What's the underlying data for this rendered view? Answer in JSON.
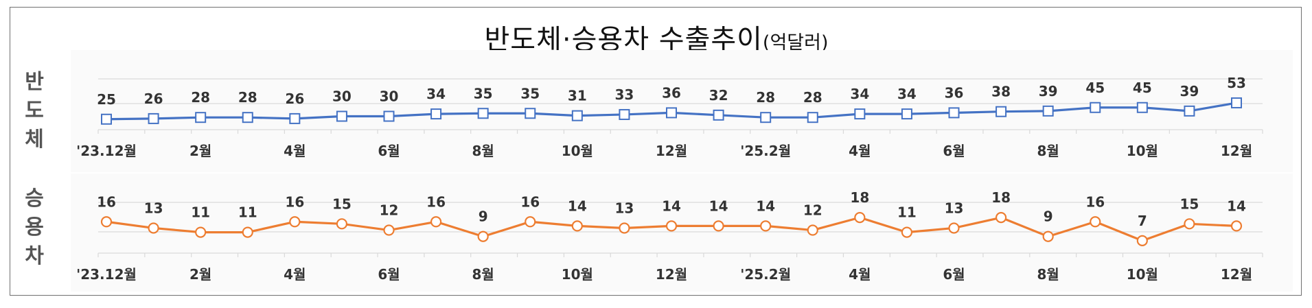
{
  "title": "반도체·승용차 수출추이",
  "title_unit": "(억달러)",
  "panels": [
    {
      "label": "반\n도\n체"
    },
    {
      "label": "승\n용\n차"
    }
  ],
  "colors": {
    "semiconductor": "#4472C4",
    "passenger_car": "#ED7D31"
  },
  "chart_data": [
    {
      "type": "line",
      "x": [
        "'23.12",
        "'24.1",
        "'24.2",
        "'24.3",
        "'24.4",
        "'24.5",
        "'24.6",
        "'24.7",
        "'24.8",
        "'24.9",
        "'24.10",
        "'24.11",
        "'24.12",
        "'25.1",
        "'25.2",
        "'25.3",
        "'25.4",
        "'25.5",
        "'25.6",
        "'25.7",
        "'25.8",
        "'25.9",
        "'25.10",
        "'25.11",
        "'25.12"
      ],
      "x_tick_labels": [
        "'23.12월",
        "",
        "2월",
        "",
        "4월",
        "",
        "6월",
        "",
        "8월",
        "",
        "10월",
        "",
        "12월",
        "",
        "'25.2월",
        "",
        "4월",
        "",
        "6월",
        "",
        "8월",
        "",
        "10월",
        "",
        "12월"
      ],
      "series": [
        {
          "values": [
            25,
            26,
            28,
            28,
            26,
            30,
            30,
            34,
            35,
            35,
            31,
            33,
            36,
            32,
            28,
            28,
            34,
            34,
            36,
            38,
            39,
            45,
            45,
            39,
            53
          ],
          "marker": "square",
          "color": "#4472C4"
        }
      ],
      "grid": true
    },
    {
      "type": "line",
      "x": [
        "'23.12",
        "'24.1",
        "'24.2",
        "'24.3",
        "'24.4",
        "'24.5",
        "'24.6",
        "'24.7",
        "'24.8",
        "'24.9",
        "'24.10",
        "'24.11",
        "'24.12",
        "'25.1",
        "'25.2",
        "'25.3",
        "'25.4",
        "'25.5",
        "'25.6",
        "'25.7",
        "'25.8",
        "'25.9",
        "'25.10",
        "'25.11",
        "'25.12"
      ],
      "x_tick_labels": [
        "'23.12월",
        "",
        "2월",
        "",
        "4월",
        "",
        "6월",
        "",
        "8월",
        "",
        "10월",
        "",
        "12월",
        "",
        "'25.2월",
        "",
        "4월",
        "",
        "6월",
        "",
        "8월",
        "",
        "10월",
        "",
        "12월"
      ],
      "series": [
        {
          "values": [
            16,
            13,
            11,
            11,
            16,
            15,
            12,
            16,
            9,
            16,
            14,
            13,
            14,
            14,
            14,
            12,
            18,
            11,
            13,
            18,
            9,
            16,
            7,
            15,
            14
          ],
          "marker": "circle",
          "color": "#ED7D31"
        }
      ],
      "grid": true
    }
  ]
}
